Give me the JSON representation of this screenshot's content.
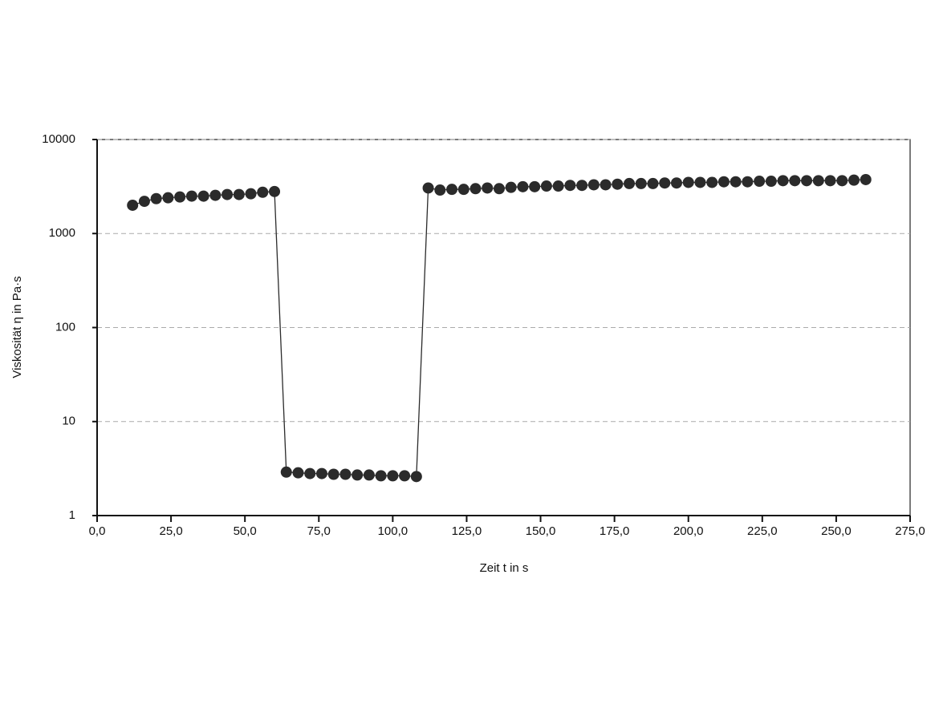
{
  "chart_data": {
    "type": "line",
    "xlabel": "Zeit  t  in s",
    "ylabel": "Viskosität  η  in Pa·s",
    "x": [
      12,
      16,
      20,
      24,
      28,
      32,
      36,
      40,
      44,
      48,
      52,
      56,
      60,
      64,
      68,
      72,
      76,
      80,
      84,
      88,
      92,
      96,
      100,
      104,
      108,
      112,
      116,
      120,
      124,
      128,
      132,
      136,
      140,
      144,
      148,
      152,
      156,
      160,
      164,
      168,
      172,
      176,
      180,
      184,
      188,
      192,
      196,
      200,
      204,
      208,
      212,
      216,
      220,
      224,
      228,
      232,
      236,
      240,
      244,
      248,
      252,
      256,
      260
    ],
    "values": [
      2000,
      2200,
      2350,
      2400,
      2450,
      2500,
      2500,
      2550,
      2600,
      2600,
      2650,
      2750,
      2800,
      2.9,
      2.85,
      2.8,
      2.8,
      2.75,
      2.75,
      2.7,
      2.7,
      2.65,
      2.65,
      2.65,
      2.6,
      3050,
      2900,
      2950,
      2950,
      3000,
      3050,
      3000,
      3100,
      3150,
      3150,
      3200,
      3200,
      3250,
      3250,
      3300,
      3300,
      3350,
      3400,
      3400,
      3400,
      3450,
      3450,
      3500,
      3500,
      3500,
      3550,
      3550,
      3550,
      3600,
      3600,
      3650,
      3650,
      3650,
      3650,
      3650,
      3650,
      3700,
      3750
    ],
    "color": "#2b2b2b",
    "xlim": [
      0,
      275
    ],
    "xticks": [
      {
        "value": 0,
        "label": "0,0"
      },
      {
        "value": 25,
        "label": "25,0"
      },
      {
        "value": 50,
        "label": "50,0"
      },
      {
        "value": 75,
        "label": "75,0"
      },
      {
        "value": 100,
        "label": "100,0"
      },
      {
        "value": 125,
        "label": "125,0"
      },
      {
        "value": 150,
        "label": "150,0"
      },
      {
        "value": 175,
        "label": "175,0"
      },
      {
        "value": 200,
        "label": "200,0"
      },
      {
        "value": 225,
        "label": "225,0"
      },
      {
        "value": 250,
        "label": "250,0"
      },
      {
        "value": 275,
        "label": "275,0"
      }
    ],
    "ylim": [
      1,
      10000
    ],
    "yticks": [
      1,
      10,
      100,
      1000,
      10000
    ],
    "log_y": true,
    "grid": true
  }
}
